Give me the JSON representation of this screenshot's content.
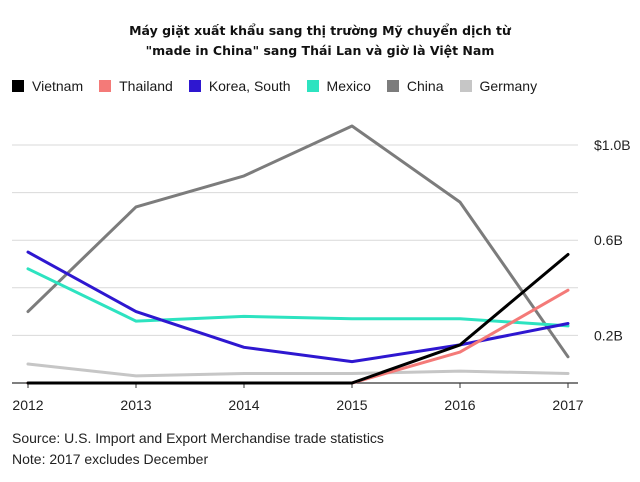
{
  "title_line1": "Máy giặt xuất khẩu sang thị trường Mỹ chuyển dịch từ",
  "title_line2": "\"made in China\" sang Thái Lan và giờ là Việt Nam",
  "source": "Source: U.S. Import and Export Merchandise trade statistics",
  "note": "Note: 2017 excludes December",
  "chart_data": {
    "type": "line",
    "x": [
      "2012",
      "2013",
      "2014",
      "2015",
      "2016",
      "2017"
    ],
    "ylim": [
      0,
      1.1
    ],
    "yticks": [
      {
        "value": 1.0,
        "label": "$1.0B"
      },
      {
        "value": 0.6,
        "label": "0.6B"
      },
      {
        "value": 0.2,
        "label": "0.2B"
      }
    ],
    "gridlines": [
      1.0,
      0.8,
      0.6,
      0.4,
      0.2
    ],
    "legend_position": "top",
    "series": [
      {
        "name": "Vietnam",
        "color": "#000000",
        "values": [
          0.0,
          0.0,
          0.0,
          0.0,
          0.16,
          0.54
        ]
      },
      {
        "name": "Thailand",
        "color": "#f47a78",
        "values": [
          0.0,
          0.0,
          0.0,
          0.0,
          0.13,
          0.39
        ]
      },
      {
        "name": "Korea, South",
        "color": "#2e17d0",
        "values": [
          0.55,
          0.3,
          0.15,
          0.09,
          0.16,
          0.25
        ]
      },
      {
        "name": "Mexico",
        "color": "#2de3c0",
        "values": [
          0.48,
          0.26,
          0.28,
          0.27,
          0.27,
          0.24
        ]
      },
      {
        "name": "China",
        "color": "#7c7c7c",
        "values": [
          0.3,
          0.74,
          0.87,
          1.08,
          0.76,
          0.11
        ]
      },
      {
        "name": "Germany",
        "color": "#c6c6c6",
        "values": [
          0.08,
          0.03,
          0.04,
          0.04,
          0.05,
          0.04
        ]
      }
    ]
  }
}
